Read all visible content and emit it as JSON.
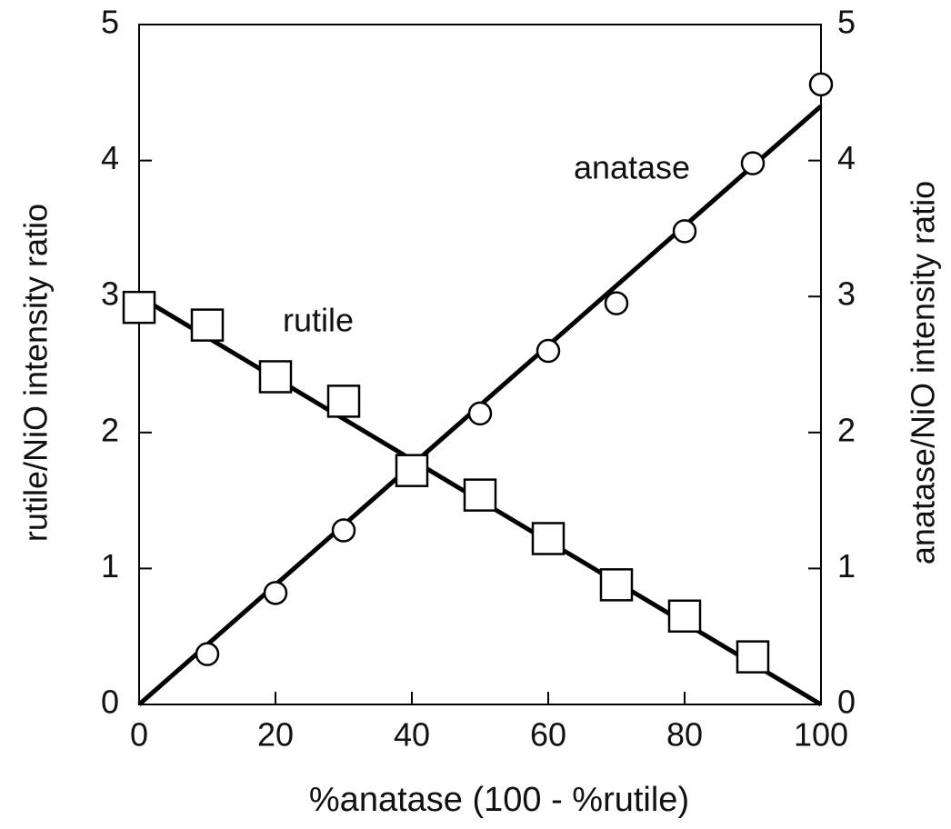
{
  "chart_data": {
    "type": "scatter",
    "x_label": "%anatase (100 - %rutile)",
    "y_label": "rutile/NiO intensity ratio",
    "y2_label": "anatase/NiO intensity ratio",
    "xlim": [
      0,
      100
    ],
    "xticks": [
      0,
      20,
      40,
      60,
      80,
      100
    ],
    "ylim": [
      0,
      5
    ],
    "yticks": [
      0,
      1,
      2,
      3,
      4,
      5
    ],
    "y2lim": [
      0,
      5
    ],
    "y2ticks": [
      0,
      1,
      2,
      3,
      4,
      5
    ],
    "series": [
      {
        "name": "rutile",
        "marker": "square",
        "color": "#000000",
        "x": [
          0,
          10,
          20,
          30,
          40,
          50,
          60,
          70,
          80,
          90
        ],
        "values": [
          2.92,
          2.79,
          2.41,
          2.23,
          1.72,
          1.54,
          1.22,
          0.88,
          0.65,
          0.35
        ],
        "fit": {
          "x": [
            0,
            100
          ],
          "values": [
            3.0,
            0
          ]
        }
      },
      {
        "name": "anatase",
        "marker": "circle",
        "color": "#000000",
        "axis": "y2",
        "x": [
          10,
          20,
          30,
          50,
          60,
          70,
          80,
          90,
          100
        ],
        "values": [
          0.37,
          0.82,
          1.28,
          2.14,
          2.6,
          2.95,
          3.48,
          3.98,
          4.56
        ],
        "fit": {
          "x": [
            0,
            100
          ],
          "values": [
            0,
            4.4
          ]
        }
      }
    ]
  }
}
